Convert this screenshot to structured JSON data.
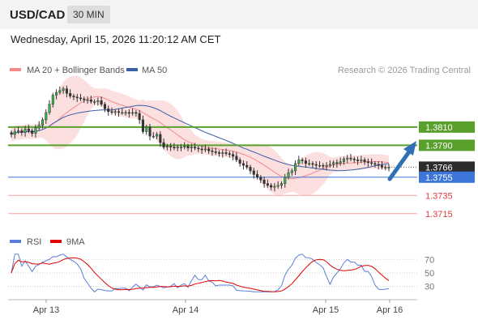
{
  "header": {
    "symbol": "USD/CAD",
    "timeframe": "30 MIN",
    "datetime": "Wednesday, April 15, 2026 11:20:12 AM CET"
  },
  "legend": {
    "ma20_label": "MA 20 + Bollinger Bands",
    "ma20_color": "#f28b8b",
    "ma50_label": "MA 50",
    "ma50_color": "#3a5fa8",
    "credit": "Research © 2026 Trading Central"
  },
  "rsi_legend": {
    "rsi_label": "RSI",
    "rsi_color": "#5b7fd8",
    "ma9_label": "9MA",
    "ma9_color": "#e00000"
  },
  "chart_data": [
    {
      "type": "candlestick",
      "ylim": [
        1.3705,
        1.3865
      ],
      "x_ticks": [
        "Apr 13",
        "Apr 14",
        "Apr 15",
        "Apr 16"
      ],
      "levels": [
        {
          "value": 1.381,
          "label": "1.3810",
          "kind": "resistance",
          "color": "#5aa02c"
        },
        {
          "value": 1.379,
          "label": "1.3790",
          "kind": "resistance",
          "color": "#5aa02c"
        },
        {
          "value": 1.3766,
          "label": "1.3766",
          "kind": "last",
          "color": "#2d2d2d"
        },
        {
          "value": 1.3755,
          "label": "1.3755",
          "kind": "pivot",
          "color": "#3d76d8"
        },
        {
          "value": 1.3735,
          "label": "1.3735",
          "kind": "support",
          "color": "#e23b3b"
        },
        {
          "value": 1.3715,
          "label": "1.3715",
          "kind": "support",
          "color": "#e23b3b"
        }
      ],
      "close": [
        1.3802,
        1.3805,
        1.3806,
        1.3804,
        1.3808,
        1.3806,
        1.3803,
        1.3809,
        1.3812,
        1.3818,
        1.3826,
        1.3835,
        1.3845,
        1.3848,
        1.385,
        1.3852,
        1.3847,
        1.3844,
        1.3843,
        1.3842,
        1.3841,
        1.384,
        1.384,
        1.3838,
        1.3838,
        1.3839,
        1.3835,
        1.383,
        1.3827,
        1.3826,
        1.3827,
        1.3826,
        1.3826,
        1.3826,
        1.3825,
        1.3826,
        1.3825,
        1.3818,
        1.3805,
        1.381,
        1.38,
        1.38,
        1.3802,
        1.3793,
        1.3788,
        1.3789,
        1.3788,
        1.3787,
        1.3788,
        1.3788,
        1.3789,
        1.3787,
        1.3788,
        1.3787,
        1.3786,
        1.3785,
        1.3786,
        1.3784,
        1.3783,
        1.3782,
        1.3781,
        1.3782,
        1.3781,
        1.378,
        1.3778,
        1.3774,
        1.377,
        1.3768,
        1.3766,
        1.3762,
        1.3758,
        1.3755,
        1.3752,
        1.3748,
        1.3746,
        1.3744,
        1.3745,
        1.3746,
        1.3748,
        1.3755,
        1.376,
        1.3762,
        1.377,
        1.3774,
        1.3773,
        1.377,
        1.377,
        1.3769,
        1.3768,
        1.3768,
        1.3767,
        1.3768,
        1.3769,
        1.3771,
        1.377,
        1.3772,
        1.3775,
        1.3776,
        1.3775,
        1.3774,
        1.3773,
        1.3774,
        1.3772,
        1.3771,
        1.377,
        1.3769,
        1.3768,
        1.3766,
        1.3766,
        1.3766
      ],
      "rsi": {
        "ylim": [
          20,
          80
        ],
        "ticks": [
          70,
          50,
          30
        ],
        "levels": [
          70,
          30
        ]
      }
    }
  ]
}
